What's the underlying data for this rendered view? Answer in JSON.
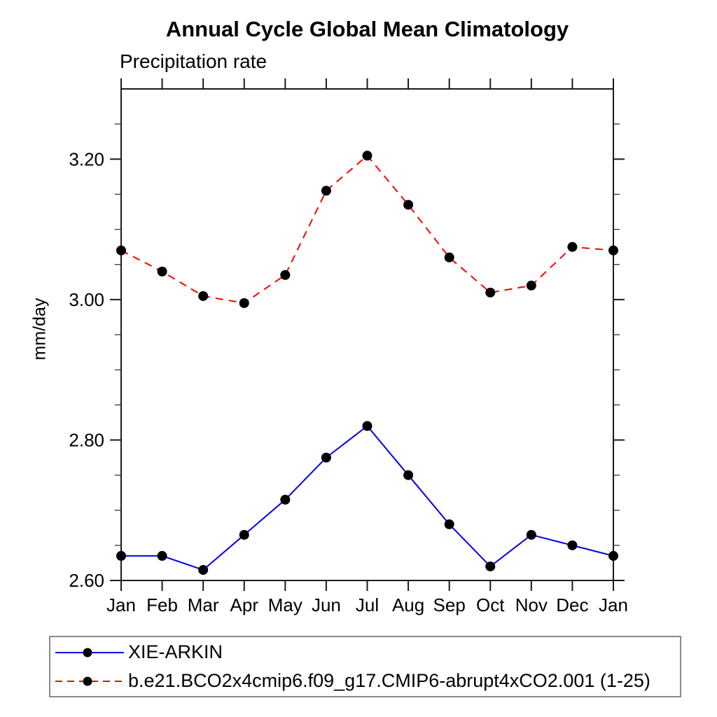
{
  "chart_data": {
    "type": "line",
    "title": "Annual Cycle Global Mean Climatology",
    "subtitle": "Precipitation rate",
    "ylabel": "mm/day",
    "categories": [
      "Jan",
      "Feb",
      "Mar",
      "Apr",
      "May",
      "Jun",
      "Jul",
      "Aug",
      "Sep",
      "Oct",
      "Nov",
      "Dec",
      "Jan"
    ],
    "series": [
      {
        "name": "XIE-ARKIN",
        "color": "#0000e6",
        "line_style": "solid",
        "marker": "black-filled-circle",
        "marker_color": "#000000",
        "values": [
          2.635,
          2.635,
          2.615,
          2.665,
          2.715,
          2.775,
          2.82,
          2.75,
          2.68,
          2.62,
          2.665,
          2.65,
          2.635
        ]
      },
      {
        "name": "b.e21.BCO2x4cmip6.f09_g17.CMIP6-abrupt4xCO2.001 (1-25)",
        "color": "#ff0000",
        "line_style": "dashed",
        "marker": "black-filled-circle",
        "marker_color": "#000000",
        "values": [
          3.07,
          3.04,
          3.005,
          2.995,
          3.035,
          3.155,
          3.205,
          3.135,
          3.06,
          3.01,
          3.02,
          3.075,
          3.07
        ]
      }
    ],
    "ylim": [
      2.6,
      3.3
    ],
    "ytick_values": [
      2.6,
      2.8,
      3.0,
      3.2
    ],
    "ytick_labels": [
      "2.60",
      "2.80",
      "3.00",
      "3.20"
    ],
    "y_minor_step": 0.05,
    "grid": false,
    "frame": "boxed-with-outward-ticks",
    "legend_position": "bottom-left-box",
    "axis_color": "#1a1a1a"
  }
}
